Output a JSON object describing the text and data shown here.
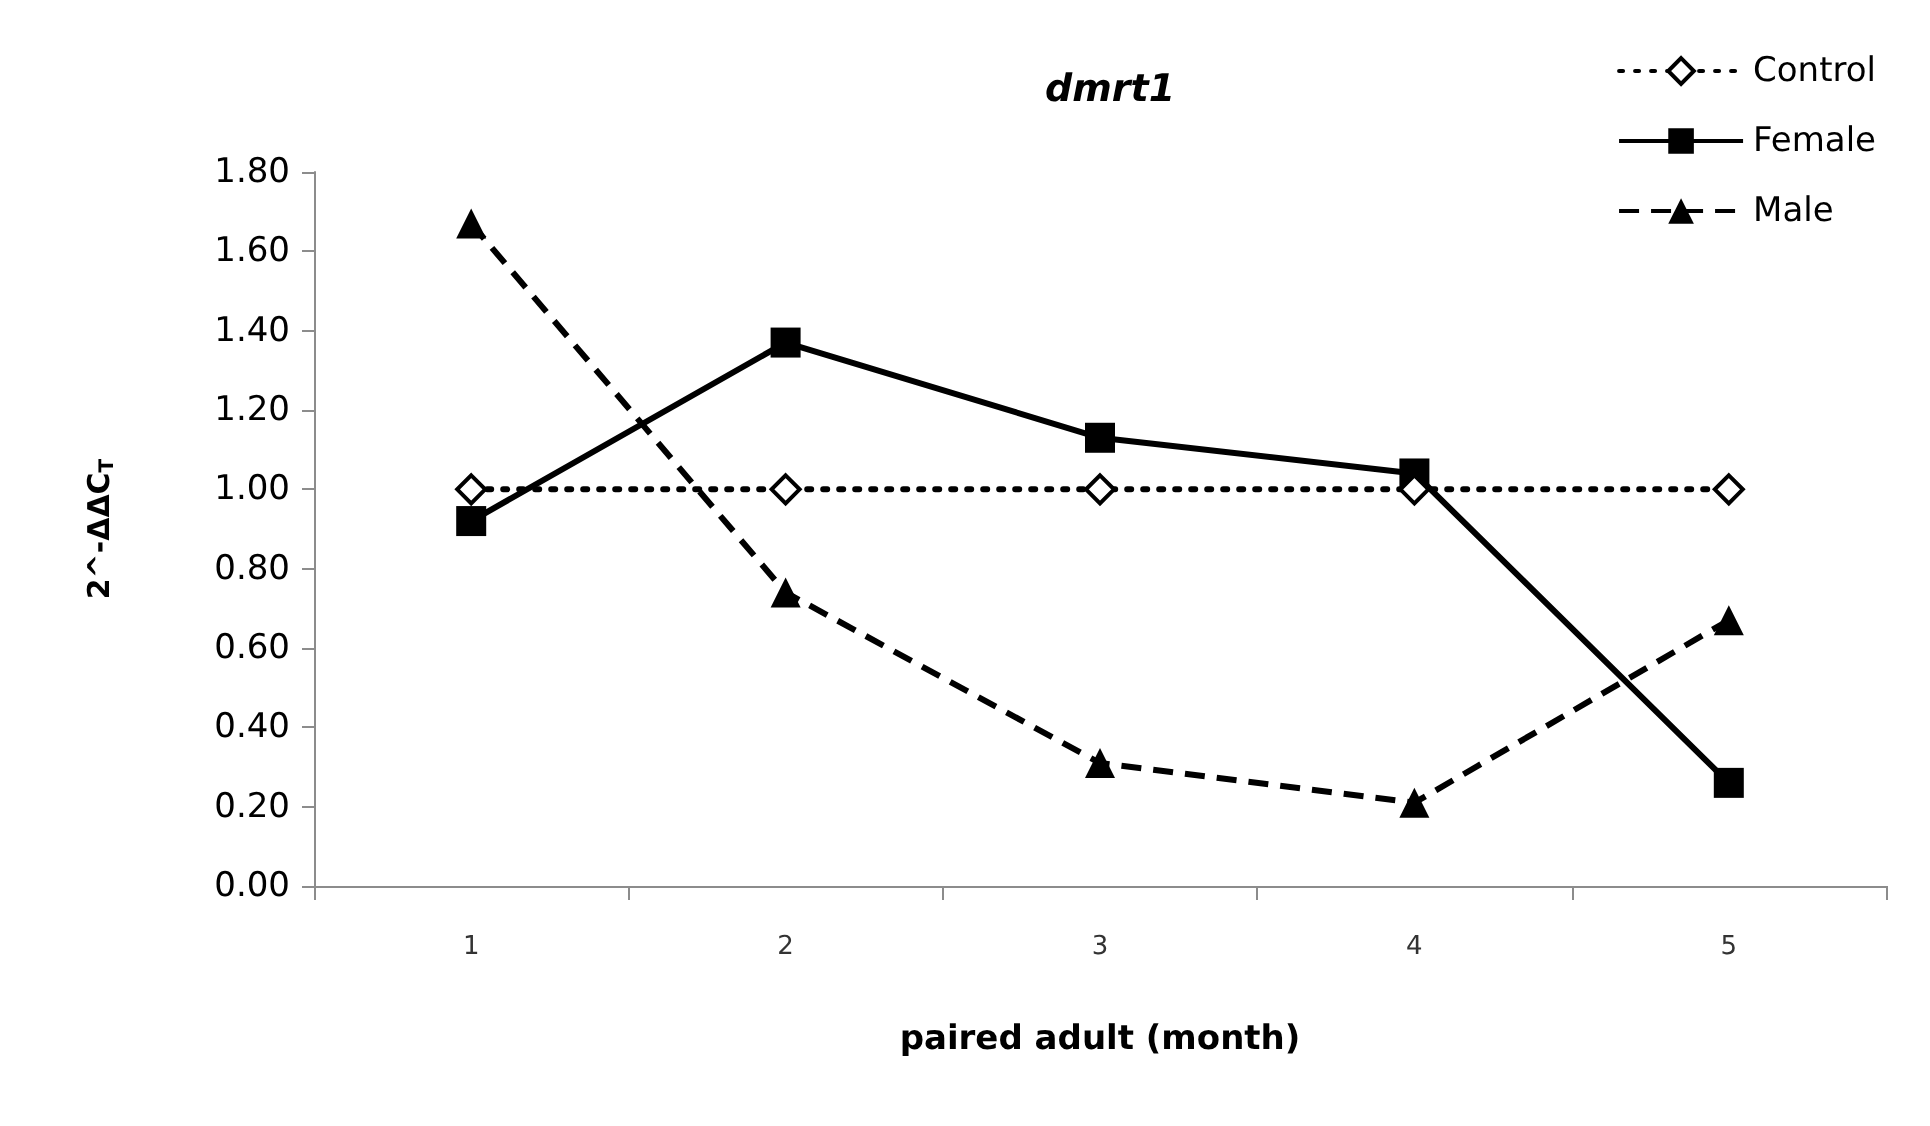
{
  "chart_data": {
    "type": "line",
    "title": "dmrt1",
    "xlabel": "paired adult (month)",
    "ylabel": "2^-ΔΔC$_{T}$",
    "categories": [
      "1",
      "2",
      "3",
      "4",
      "5"
    ],
    "series": [
      {
        "name": "Control",
        "color": "#000000",
        "marker": "diamond",
        "line_style": "dotted",
        "values": [
          1.0,
          1.0,
          1.0,
          1.0,
          1.0
        ]
      },
      {
        "name": "Female",
        "color": "#000000",
        "marker": "square",
        "line_style": "solid",
        "values": [
          0.92,
          1.37,
          1.13,
          1.04,
          0.26
        ]
      },
      {
        "name": "Male",
        "color": "#000000",
        "marker": "triangle",
        "line_style": "dashed",
        "values": [
          1.67,
          0.74,
          0.31,
          0.21,
          0.67
        ]
      }
    ],
    "ylim": [
      0,
      1.8
    ],
    "yticks": [
      {
        "value": 0,
        "label": "0.00"
      },
      {
        "value": 0.2,
        "label": "0.20"
      },
      {
        "value": 0.4,
        "label": "0.40"
      },
      {
        "value": 0.6,
        "label": "0.60"
      },
      {
        "value": 0.8,
        "label": "0.80"
      },
      {
        "value": 1.0,
        "label": "1.00"
      },
      {
        "value": 1.2,
        "label": "1.20"
      },
      {
        "value": 1.4,
        "label": "1.40"
      },
      {
        "value": 1.6,
        "label": "1.60"
      },
      {
        "value": 1.8,
        "label": "1.80"
      }
    ],
    "grid": false,
    "legend": "top right"
  }
}
